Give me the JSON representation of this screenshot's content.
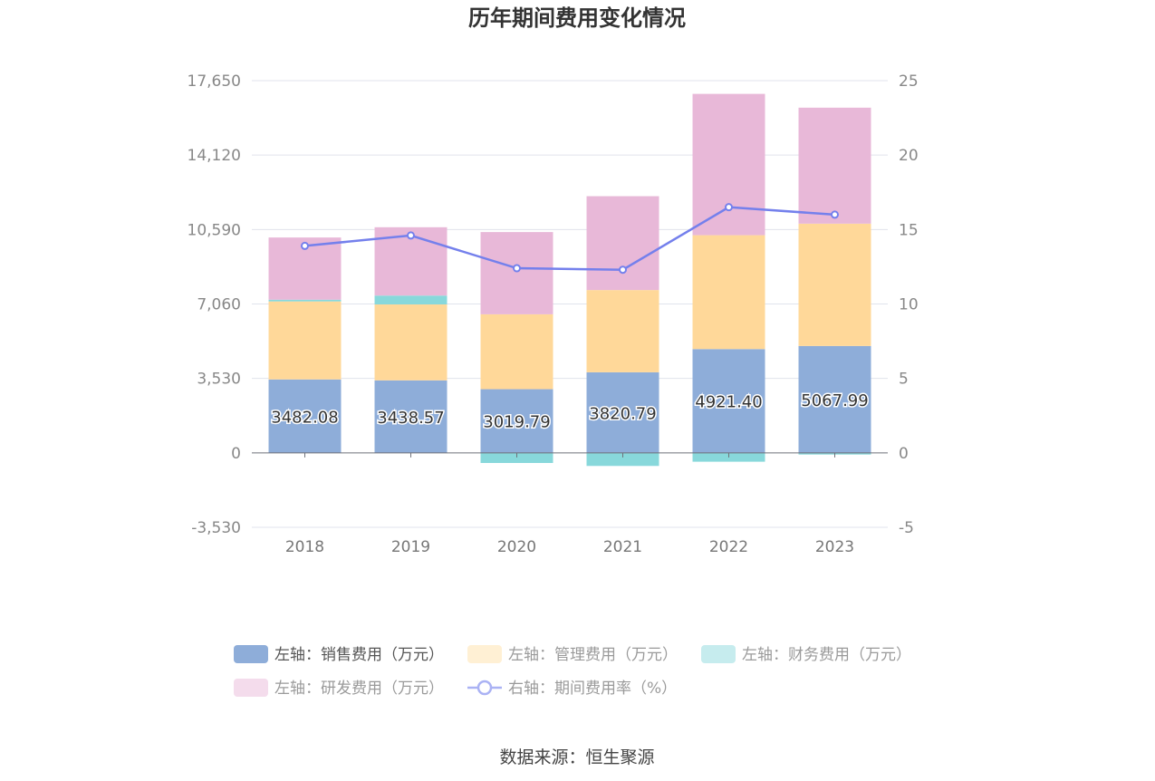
{
  "chart_data": {
    "type": "bar",
    "title": "历年期间费用变化情况",
    "source": "数据来源：恒生聚源",
    "categories": [
      "2018",
      "2019",
      "2020",
      "2021",
      "2022",
      "2023"
    ],
    "left_axis": {
      "ticks": [
        "17,650",
        "14,120",
        "10,590",
        "7,060",
        "3,530",
        "0",
        "-3,530"
      ],
      "ylim": [
        -3530,
        17650
      ]
    },
    "right_axis": {
      "ticks": [
        "25",
        "20",
        "15",
        "10",
        "5",
        "0",
        "-5"
      ],
      "ylim": [
        -5,
        25
      ]
    },
    "series": [
      {
        "name": "左轴：销售费用（万元）",
        "type": "bar",
        "axis": "left",
        "color": "#8eadd9",
        "values": [
          3482.08,
          3438.57,
          3019.79,
          3820.79,
          4921.4,
          5067.99
        ],
        "labels": [
          "3482.08",
          "3438.57",
          "3019.79",
          "3820.79",
          "4921.40",
          "5067.99"
        ]
      },
      {
        "name": "左轴：管理费用（万元）",
        "type": "bar",
        "axis": "left",
        "color": "#ffd899",
        "values": [
          3700,
          3600,
          3550,
          3900,
          5400,
          5800
        ]
      },
      {
        "name": "左轴：财务费用（万元）",
        "type": "bar",
        "axis": "left",
        "color": "#88d8db",
        "values": [
          80,
          420,
          -480,
          -620,
          -420,
          -80
        ]
      },
      {
        "name": "左轴：研发费用（万元）",
        "type": "bar",
        "axis": "left",
        "color": "#e8b8d8",
        "values": [
          2950,
          3240,
          3900,
          4450,
          6700,
          5500
        ]
      },
      {
        "name": "右轴：期间费用率（%）",
        "type": "line",
        "axis": "right",
        "color": "#7480ec",
        "values": [
          13.9,
          14.6,
          12.4,
          12.3,
          16.5,
          16.0
        ]
      }
    ],
    "legend_position": "bottom",
    "grid": true
  }
}
